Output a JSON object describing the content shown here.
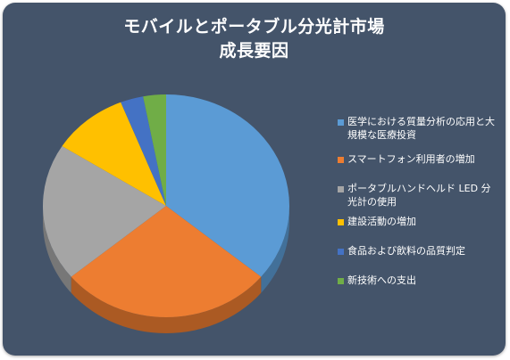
{
  "chart_data": {
    "type": "pie",
    "title_lines": [
      "モバイルとポータブル分光計市場",
      "成長要因"
    ],
    "categories": [
      "医学における質量分析の応用と大規模な医療投資",
      "スマートフォン利用者の増加",
      "ポータブルハンドヘルド LED 分光計の使用",
      "建設活動の増加",
      "食品および飲料の品質判定",
      "新技術への支出"
    ],
    "values": [
      36,
      28,
      20,
      10,
      3,
      3
    ],
    "colors": [
      "#5b9bd5",
      "#ed7d31",
      "#a5a5a5",
      "#ffc000",
      "#4472c4",
      "#70ad47"
    ],
    "legend_position": "right",
    "style": "3d"
  }
}
